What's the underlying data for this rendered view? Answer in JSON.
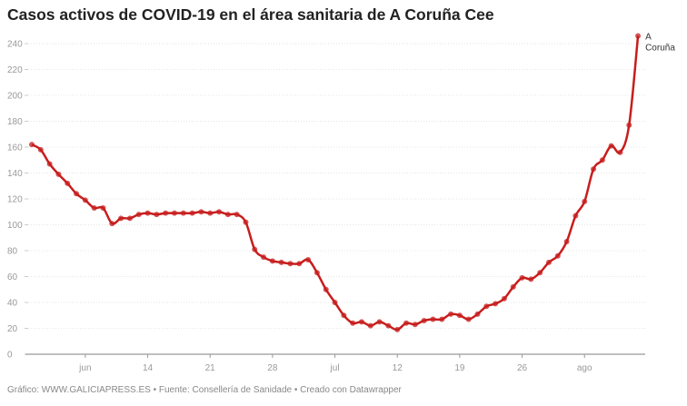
{
  "title": "Casos activos de COVID-19 en el área sanitaria de A Coruña Cee",
  "footer": "Gráfico: WWW.GALICIAPRESS.ES • Fuente: Consellería de Sanidade • Creado con Datawrapper",
  "chart_data": {
    "type": "line",
    "title": "Casos activos de COVID-19 en el área sanitaria de A Coruña Cee",
    "xlabel": "",
    "ylabel": "",
    "ylim": [
      0,
      240
    ],
    "yticks": [
      0,
      20,
      40,
      60,
      80,
      100,
      120,
      140,
      160,
      180,
      200,
      220,
      240
    ],
    "x_start": "2020-06-01",
    "x_end": "2020-08-08",
    "xticks": [
      {
        "date": "2020-06-07",
        "label": "jun"
      },
      {
        "date": "2020-06-14",
        "label": "14"
      },
      {
        "date": "2020-06-21",
        "label": "21"
      },
      {
        "date": "2020-06-28",
        "label": "28"
      },
      {
        "date": "2020-07-05",
        "label": "jul"
      },
      {
        "date": "2020-07-12",
        "label": "12"
      },
      {
        "date": "2020-07-19",
        "label": "19"
      },
      {
        "date": "2020-07-26",
        "label": "26"
      },
      {
        "date": "2020-08-02",
        "label": "ago"
      }
    ],
    "grid": true,
    "color": "#c71e1d",
    "series": [
      {
        "name": "A Coruña",
        "label_lines": [
          "A",
          "Coruña"
        ],
        "values": [
          162,
          158,
          147,
          139,
          132,
          124,
          119,
          113,
          113,
          101,
          105,
          105,
          108,
          109,
          108,
          109,
          109,
          109,
          109,
          110,
          109,
          110,
          108,
          108,
          102,
          81,
          75,
          72,
          71,
          70,
          70,
          73,
          63,
          50,
          40,
          30,
          24,
          25,
          22,
          25,
          22,
          19,
          24,
          23,
          26,
          27,
          27,
          31,
          30,
          27,
          31,
          37,
          39,
          43,
          52,
          59,
          58,
          63,
          71,
          76,
          87,
          107,
          118,
          143,
          150,
          161,
          156,
          177,
          246
        ]
      }
    ]
  }
}
